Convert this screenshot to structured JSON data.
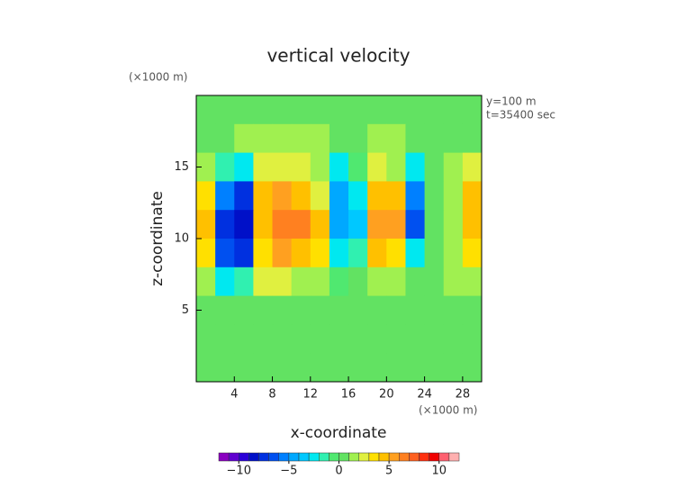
{
  "chart_data": {
    "type": "heatmap",
    "title": "vertical velocity",
    "xlabel": "x-coordinate",
    "ylabel": "z-coordinate",
    "xunit": "(×1000 m)",
    "yunit": "(×1000 m)",
    "annotations": [
      "y=100 m",
      "t=35400 sec"
    ],
    "x": [
      1,
      3,
      5,
      7,
      9,
      11,
      13,
      15,
      17,
      19,
      21,
      23,
      25,
      27,
      29
    ],
    "y": [
      19,
      17,
      15,
      13,
      11,
      9,
      7,
      5,
      3,
      1
    ],
    "z": [
      [
        0.5,
        0,
        0,
        0,
        0.5,
        0,
        0,
        0,
        0,
        0,
        0,
        0,
        0,
        0,
        0
      ],
      [
        0.5,
        0.5,
        1,
        1,
        1.5,
        1.5,
        1,
        0.5,
        0.5,
        1,
        1,
        0.5,
        0.5,
        0.5,
        0.5
      ],
      [
        1,
        -2,
        -3,
        2,
        2.5,
        2,
        1.5,
        -3,
        -1,
        2,
        1,
        -3,
        0,
        1,
        2
      ],
      [
        3,
        -6,
        -8,
        4,
        5,
        4,
        2,
        -5,
        -3,
        4,
        4,
        -6,
        0,
        1,
        4
      ],
      [
        4,
        -8,
        -9,
        4,
        6,
        6,
        4,
        -5,
        -4,
        5,
        5,
        -7,
        0,
        1,
        4
      ],
      [
        3,
        -7,
        -8,
        3,
        5,
        4,
        3,
        -3,
        -2,
        4,
        3,
        -3,
        0,
        1,
        3
      ],
      [
        1,
        -3,
        -2,
        2,
        2,
        1,
        1,
        -1,
        0,
        1,
        1,
        0,
        0,
        1,
        1
      ],
      [
        0,
        0,
        0,
        0,
        0,
        0,
        0,
        0,
        0,
        0,
        0,
        0,
        0,
        0,
        0
      ],
      [
        0,
        0,
        0,
        0.5,
        0.5,
        0,
        0,
        0,
        0,
        0,
        0,
        0,
        0,
        0,
        0
      ],
      [
        0,
        0,
        0,
        0,
        0,
        0,
        0,
        0,
        0,
        0,
        0,
        0,
        0,
        0,
        0
      ]
    ],
    "xlim": [
      0,
      30
    ],
    "ylim": [
      0,
      20
    ],
    "xticks": [
      4,
      8,
      12,
      16,
      20,
      24,
      28
    ],
    "yticks": [
      5,
      10,
      15
    ],
    "clim": [
      -12,
      12
    ],
    "cticks": [
      {
        "value": -10,
        "label": "−10"
      },
      {
        "value": -5,
        "label": "−5"
      },
      0,
      5,
      10
    ],
    "colorscale": [
      "#8a00c0",
      "#6000d0",
      "#2a00d8",
      "#0010c8",
      "#0030e0",
      "#0050f0",
      "#0080ff",
      "#00a8ff",
      "#00c8ff",
      "#00e8f0",
      "#30f0b0",
      "#50e870",
      "#62e262",
      "#a0f050",
      "#e0f040",
      "#ffe000",
      "#ffc000",
      "#ffa020",
      "#ff8020",
      "#ff6020",
      "#ff3010",
      "#f00000",
      "#ff6070",
      "#ffb0b0"
    ]
  }
}
